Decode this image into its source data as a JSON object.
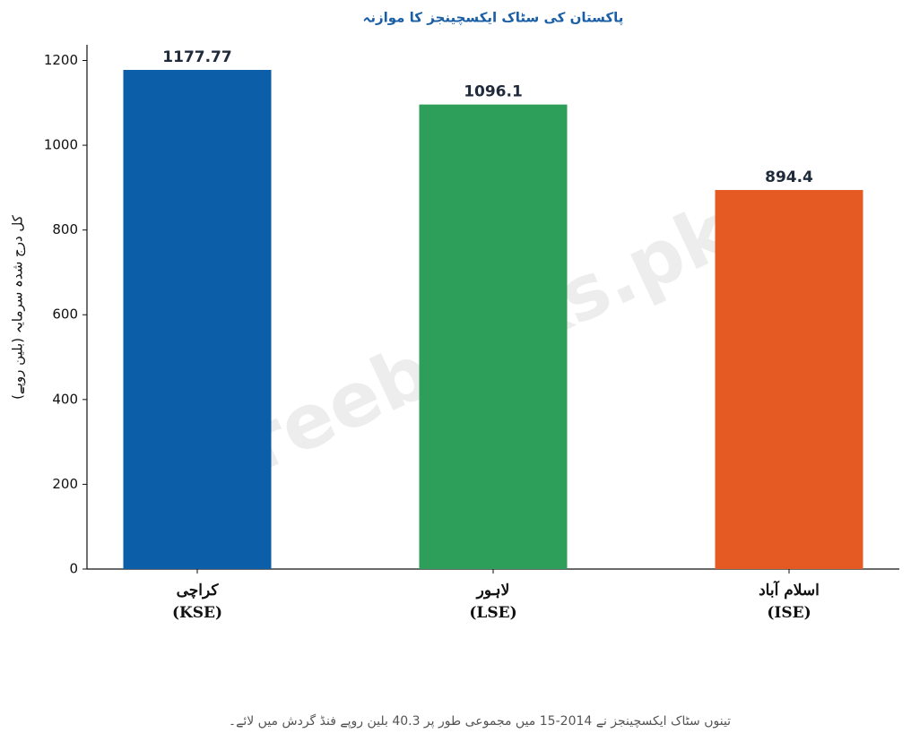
{
  "chart_data": {
    "type": "bar",
    "title": "پاکستان کی سٹاک ایکسچینجز کا موازنہ",
    "y_label": "کل درج شدہ سرمایہ (بلین روپے)",
    "categories": [
      "کراچی\n(KSE)",
      "لاہور\n(LSE)",
      "اسلام آباد\n(ISE)"
    ],
    "values": [
      1177.77,
      1096.1,
      894.4
    ],
    "colors": [
      "#0c5ea8",
      "#2e9e5b",
      "#e55a22"
    ],
    "ylim": [
      0,
      1237
    ],
    "yticks": [
      0,
      200,
      400,
      600,
      800,
      1000,
      1200
    ],
    "grid": false,
    "watermark": "freebooks.pk",
    "footnote": "تینوں سٹاک ایکسچینجز نے 2014-15 میں مجموعی طور پر 40.3 بلین روپے فنڈ گردش میں لائے۔"
  }
}
